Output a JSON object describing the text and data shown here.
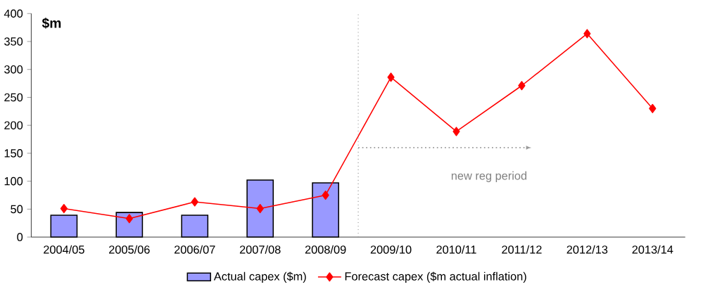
{
  "chart_data": {
    "type": "bar",
    "ylabel": "$m",
    "categories": [
      "2004/05",
      "2005/06",
      "2006/07",
      "2007/08",
      "2008/09",
      "2009/10",
      "2010/11",
      "2011/12",
      "2012/13",
      "2013/14"
    ],
    "series": [
      {
        "name": "Actual capex ($m)",
        "color": "#9999ff",
        "values": [
          39,
          44,
          39,
          102,
          97,
          null,
          null,
          null,
          null,
          null
        ]
      },
      {
        "name": "Forecast capex ($m actual inflation)",
        "type": "line",
        "color": "#ff0000",
        "marker": "diamond",
        "values": [
          51,
          33,
          63,
          51,
          75,
          286,
          189,
          271,
          364,
          230
        ]
      }
    ],
    "ylim": [
      0,
      400
    ],
    "yticks": [
      0,
      50,
      100,
      150,
      200,
      250,
      300,
      350,
      400
    ],
    "annotations": [
      "new  reg period"
    ],
    "grid": false,
    "legend": "bottom"
  }
}
